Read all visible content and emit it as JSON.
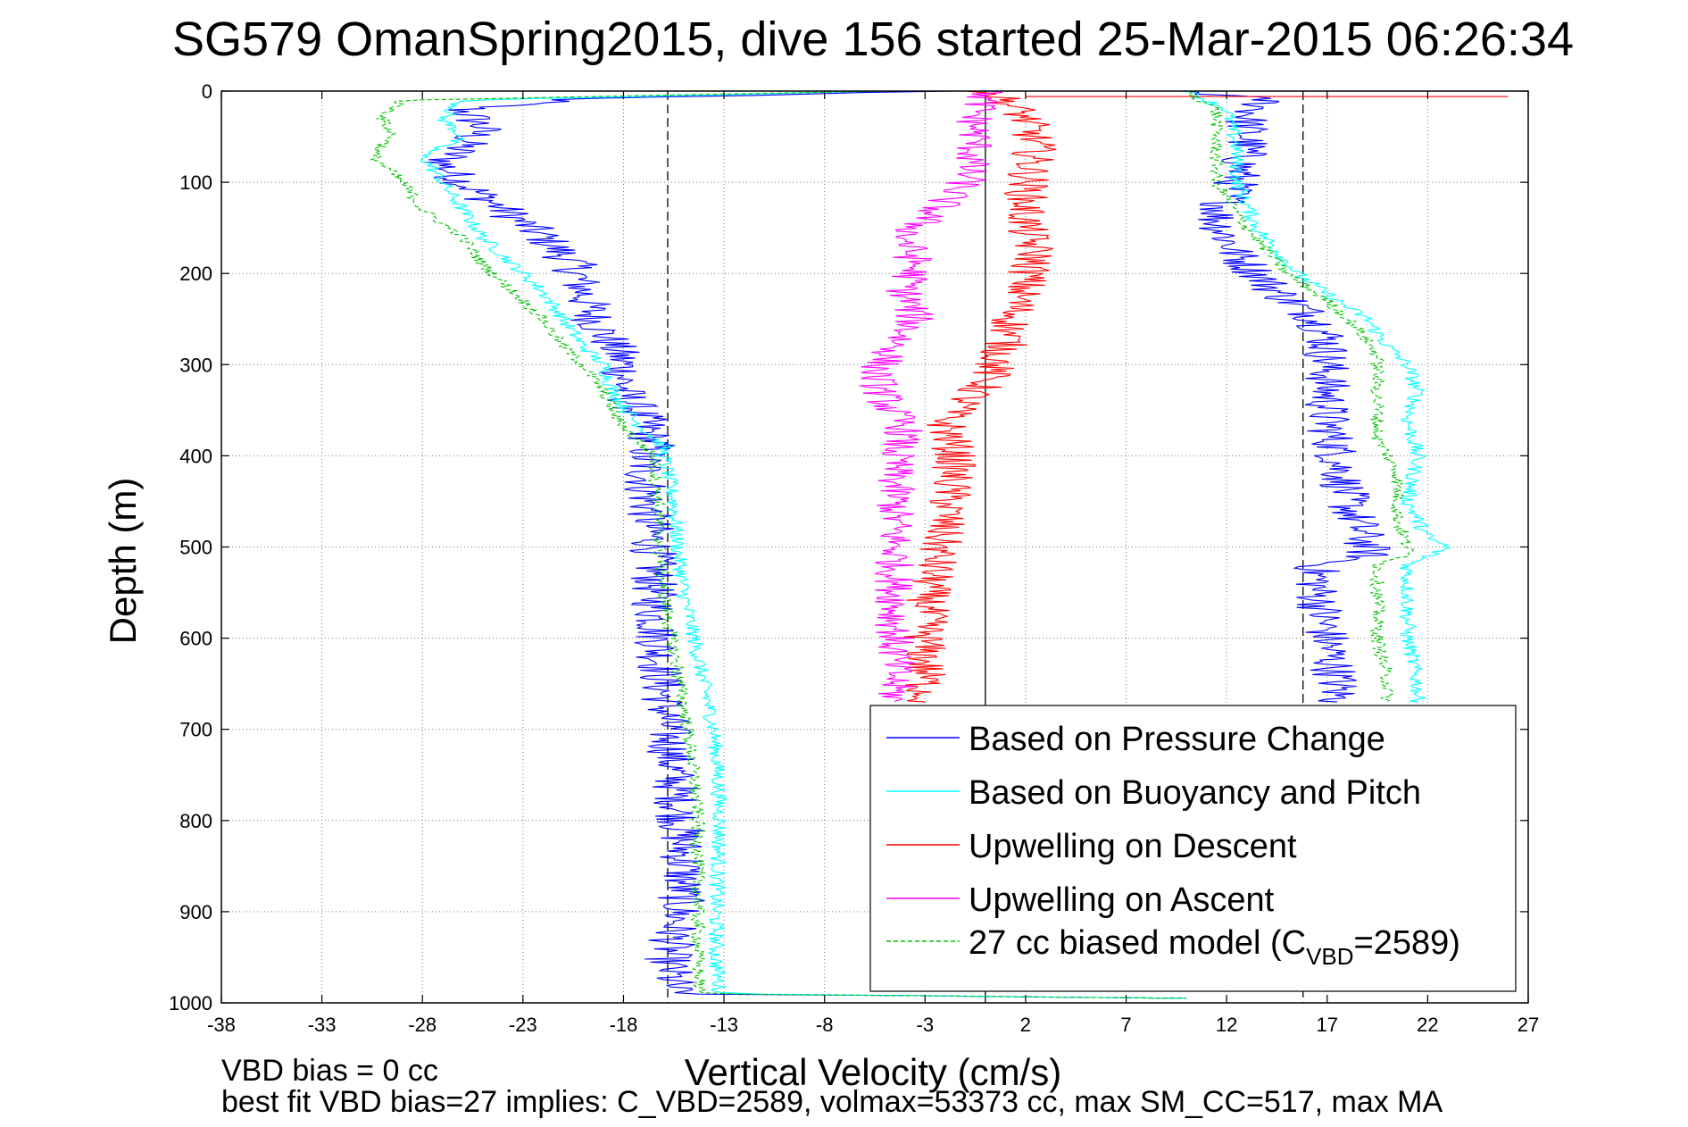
{
  "chart_data": {
    "type": "line",
    "title": "SG579 OmanSpring2015, dive 156 started 25-Mar-2015 06:26:34",
    "xlabel": "Vertical Velocity (cm/s)",
    "ylabel": "Depth (m)",
    "xlim": [
      -38,
      27
    ],
    "ylim": [
      0,
      1000
    ],
    "y_reversed": true,
    "grid": true,
    "xticks": [
      "-38",
      "-33",
      "-28",
      "-23",
      "-18",
      "-13",
      "-8",
      "-3",
      "2",
      "7",
      "12",
      "17",
      "22",
      "27"
    ],
    "yticks": [
      "0",
      "100",
      "200",
      "300",
      "400",
      "500",
      "600",
      "700",
      "800",
      "900",
      "1000"
    ],
    "reference_lines": [
      {
        "x": -15.8,
        "style": "dashed",
        "color": "#000000"
      },
      {
        "x": 0,
        "style": "solid",
        "color": "#000000"
      },
      {
        "x": 15.8,
        "style": "dashed",
        "color": "#000000"
      }
    ],
    "legend_position": "bottom-right",
    "series": [
      {
        "name": "Based on Pressure Change",
        "color": "#0000ff",
        "style": "solid",
        "noise": 1.2,
        "segments": [
          {
            "depth": [
              0,
              8,
              20,
              40,
              60,
              80,
              100,
              130,
              160,
              190,
              220,
              250,
              280,
              300,
              330,
              360,
              390,
              400,
              450,
              500,
              550,
              600,
              650,
              700,
              750,
              800,
              850,
              900,
              950,
              990,
              995
            ],
            "value": [
              -2,
              -20,
              -26,
              -25,
              -26,
              -27,
              -26,
              -24,
              -22,
              -20.5,
              -20,
              -19.5,
              -18.5,
              -18,
              -18,
              -17,
              -16.5,
              -17,
              -16.8,
              -16.5,
              -16.5,
              -16.3,
              -16.1,
              -15.8,
              -15.5,
              -15.2,
              -15.0,
              -15.2,
              -15.8,
              -15.5,
              10
            ]
          },
          {
            "depth": [
              0,
              10,
              30,
              60,
              100,
              140,
              160,
              180,
              200,
              220,
              250,
              270,
              300,
              330,
              360,
              400,
              450,
              500,
              510,
              520,
              550,
              600,
              650,
              670
            ],
            "value": [
              10,
              14,
              13,
              13,
              12.5,
              11.5,
              12,
              12.5,
              13.5,
              14.5,
              16.5,
              17,
              17,
              17,
              17,
              17.5,
              18,
              19,
              19,
              16.5,
              16.5,
              17,
              17.5,
              17.5
            ]
          }
        ]
      },
      {
        "name": "Based on Buoyancy and Pitch",
        "color": "#00ffff",
        "style": "solid",
        "noise": 0.4,
        "segments": [
          {
            "depth": [
              0,
              10,
              30,
              50,
              70,
              100,
              130,
              160,
              190,
              220,
              250,
              280,
              300,
              330,
              360,
              390,
              400,
              450,
              500,
              550,
              600,
              650,
              700,
              750,
              800,
              850,
              900,
              950,
              990,
              995
            ],
            "value": [
              -5,
              -26,
              -27,
              -26,
              -28,
              -27,
              -26,
              -25,
              -23.5,
              -22,
              -21,
              -20,
              -19,
              -18.5,
              -17.5,
              -16,
              -16,
              -15.5,
              -15.3,
              -15.0,
              -14.5,
              -14.0,
              -13.5,
              -13.3,
              -13.2,
              -13.3,
              -13.4,
              -13.4,
              -13.2,
              10
            ]
          },
          {
            "depth": [
              0,
              20,
              60,
              100,
              150,
              200,
              230,
              250,
              280,
              300,
              330,
              360,
              400,
              450,
              490,
              500,
              510,
              520,
              550,
              600,
              650,
              670
            ],
            "value": [
              10,
              12,
              12.5,
              12.5,
              13.5,
              15.5,
              17.5,
              19,
              20,
              21,
              21.5,
              21,
              21.5,
              21,
              22,
              23,
              22,
              21,
              21,
              21,
              21.5,
              21.5
            ]
          }
        ]
      },
      {
        "name": "Upwelling on Descent",
        "color": "#ff0000",
        "style": "solid",
        "noise": 1.1,
        "segments": [
          {
            "depth": [
              0,
              10,
              30,
              60,
              90,
              120,
              150,
              180,
              210,
              240,
              260,
              280,
              300,
              320,
              340,
              360,
              400,
              450,
              500,
              550,
              600,
              650,
              670
            ],
            "value": [
              0,
              1,
              2,
              2.5,
              2.2,
              2,
              2,
              2.5,
              2,
              1.5,
              1.2,
              1,
              0.5,
              0,
              -1,
              -2,
              -1.5,
              -1.8,
              -2.3,
              -2.8,
              -3,
              -3,
              -3
            ]
          },
          {
            "depth": [
              6,
              6,
              6
            ],
            "value": [
              2,
              14,
              26
            ]
          }
        ]
      },
      {
        "name": "Upwelling on Ascent",
        "color": "#ff00ff",
        "style": "solid",
        "noise": 1.0,
        "segments": [
          {
            "depth": [
              0,
              30,
              60,
              100,
              130,
              160,
              190,
              220,
              250,
              280,
              310,
              340,
              370,
              400,
              450,
              500,
              550,
              600,
              650,
              670
            ],
            "value": [
              0,
              -0.5,
              -0.5,
              -1,
              -2.5,
              -4,
              -3.5,
              -4,
              -3.5,
              -4.5,
              -5.5,
              -5,
              -4,
              -4.5,
              -4.5,
              -4.5,
              -4.5,
              -4.5,
              -4.5,
              -4.5
            ]
          }
        ]
      },
      {
        "name": "27 cc biased model (C",
        "name_sub": "VBD",
        "name_tail": "=2589)",
        "color": "#00c000",
        "style": "dashed",
        "noise": 0.35,
        "segments": [
          {
            "depth": [
              0,
              10,
              30,
              50,
              70,
              100,
              130,
              160,
              190,
              220,
              250,
              280,
              300,
              330,
              360,
              390,
              400,
              450,
              500,
              550,
              600,
              650,
              700,
              750,
              800,
              850,
              900,
              950,
              990,
              995
            ],
            "value": [
              -5,
              -29,
              -30,
              -29.5,
              -30.5,
              -29,
              -28,
              -26,
              -25,
              -23.5,
              -22,
              -21,
              -20,
              -19,
              -18.3,
              -17,
              -16.5,
              -16.3,
              -16.2,
              -16.0,
              -15.6,
              -15.2,
              -14.8,
              -14.5,
              -14.3,
              -14.3,
              -14.3,
              -14.3,
              -14.2,
              10
            ]
          },
          {
            "depth": [
              0,
              20,
              60,
              100,
              150,
              200,
              230,
              260,
              290,
              320,
              350,
              380,
              420,
              470,
              500,
              510,
              520,
              560,
              600,
              650,
              670
            ],
            "value": [
              10,
              11.5,
              11.5,
              11.5,
              13,
              15,
              17,
              18.5,
              19.5,
              19.5,
              19.5,
              19.5,
              20.5,
              20.5,
              21,
              21,
              19.5,
              19.5,
              19.5,
              20,
              20
            ]
          }
        ]
      }
    ]
  },
  "footer": {
    "line1": "VBD bias = 0 cc",
    "line2": "best fit VBD bias=27 implies: C_VBD=2589, volmax=53373 cc, max SM_CC=517, max MA"
  }
}
